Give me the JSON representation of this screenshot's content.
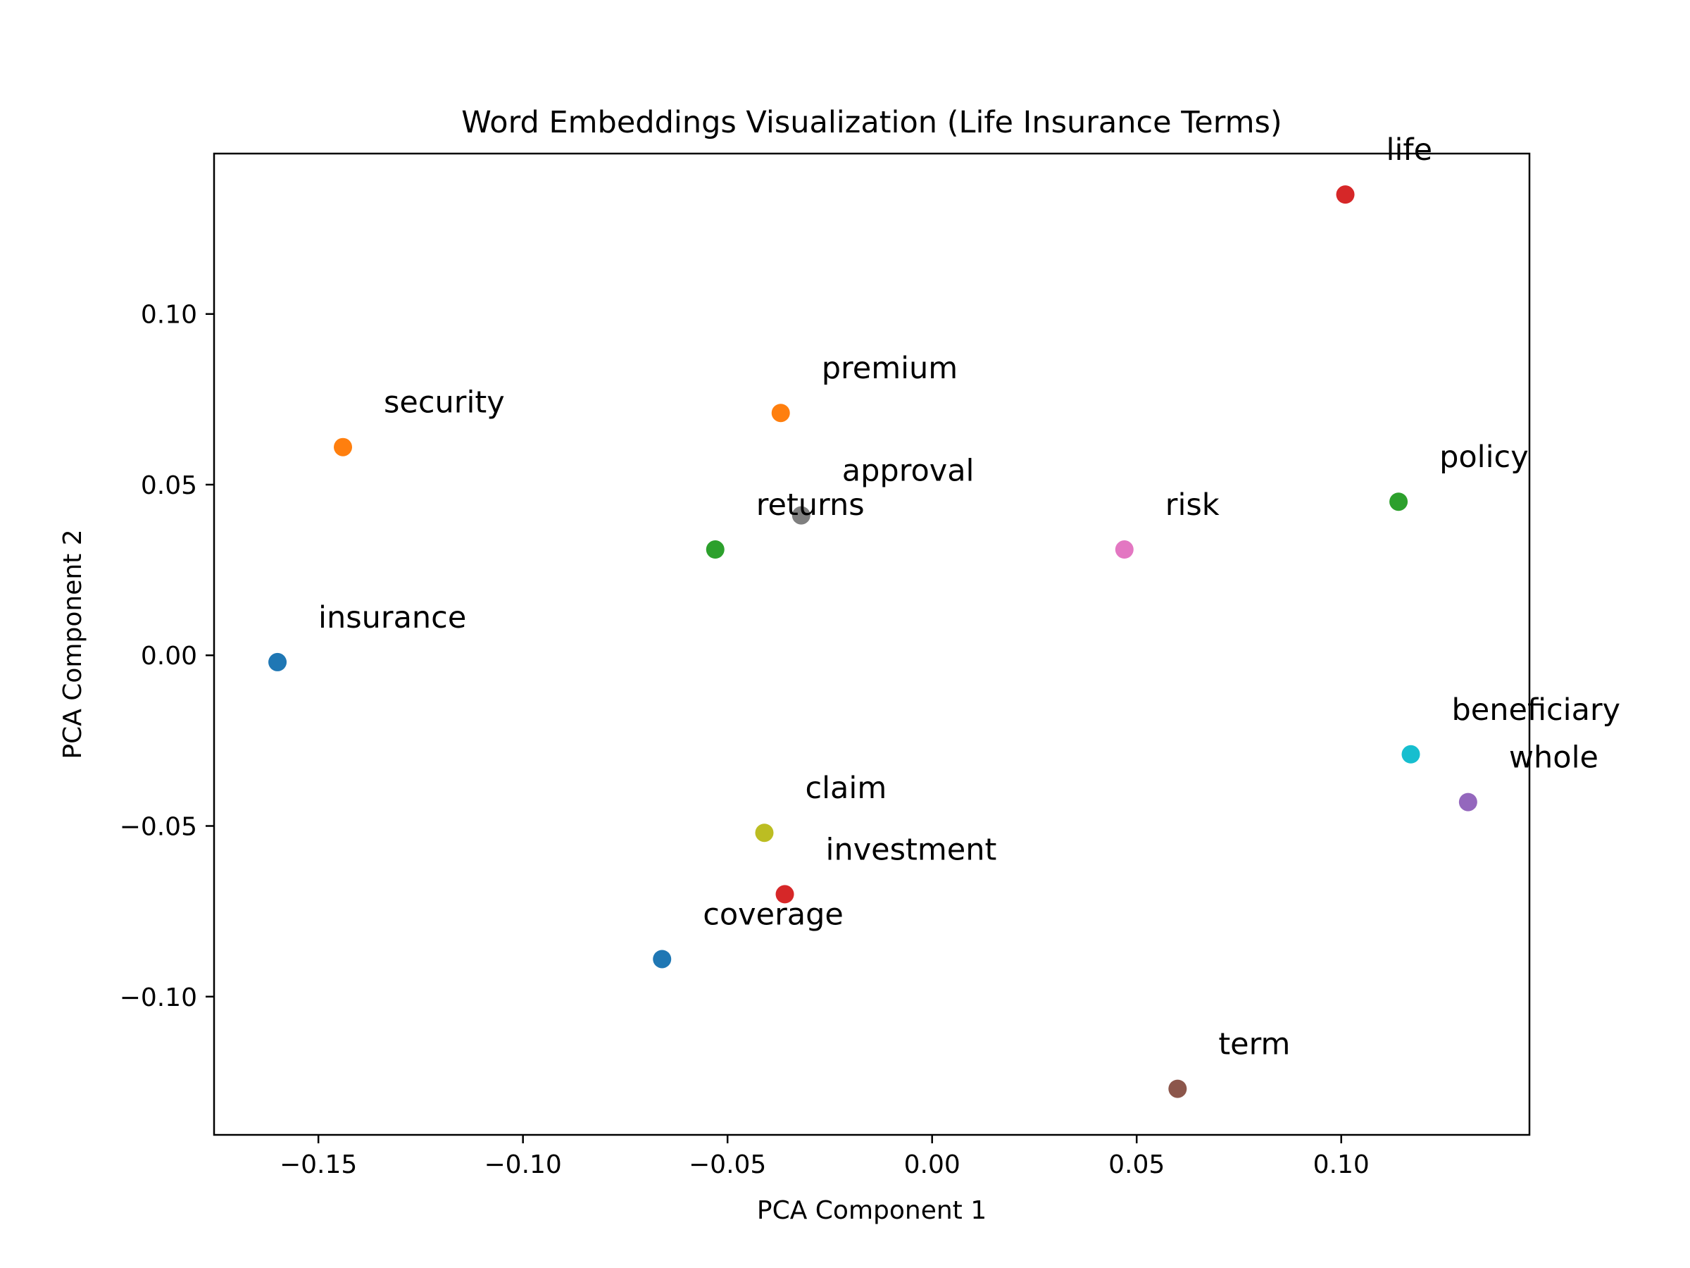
{
  "chart_data": {
    "type": "scatter",
    "title": "Word Embeddings Visualization (Life Insurance Terms)",
    "xlabel": "PCA Component 1",
    "ylabel": "PCA Component 2",
    "xlim": [
      -0.1755,
      0.146
    ],
    "ylim": [
      -0.1405,
      0.147
    ],
    "xticks": [
      -0.15,
      -0.1,
      -0.05,
      0.0,
      0.05,
      0.1
    ],
    "xtick_labels": [
      "−0.15",
      "−0.10",
      "−0.05",
      "0.00",
      "0.05",
      "0.10"
    ],
    "yticks": [
      -0.1,
      -0.05,
      0.0,
      0.05,
      0.1
    ],
    "ytick_labels": [
      "−0.10",
      "−0.05",
      "0.00",
      "0.05",
      "0.10"
    ],
    "grid": false,
    "legend": "none",
    "points": [
      {
        "label": "insurance",
        "x": -0.16,
        "y": -0.002,
        "color": "#1f77b4"
      },
      {
        "label": "security",
        "x": -0.144,
        "y": 0.061,
        "color": "#ff7f0e"
      },
      {
        "label": "returns",
        "x": -0.053,
        "y": 0.031,
        "color": "#2ca02c"
      },
      {
        "label": "premium",
        "x": -0.037,
        "y": 0.071,
        "color": "#ff7f0e"
      },
      {
        "label": "approval",
        "x": -0.032,
        "y": 0.041,
        "color": "#7f7f7f"
      },
      {
        "label": "risk",
        "x": 0.047,
        "y": 0.031,
        "color": "#e377c2"
      },
      {
        "label": "life",
        "x": 0.101,
        "y": 0.135,
        "color": "#d62728"
      },
      {
        "label": "policy",
        "x": 0.114,
        "y": 0.045,
        "color": "#2ca02c"
      },
      {
        "label": "beneficiary",
        "x": 0.117,
        "y": -0.029,
        "color": "#17becf"
      },
      {
        "label": "whole",
        "x": 0.131,
        "y": -0.043,
        "color": "#9467bd"
      },
      {
        "label": "claim",
        "x": -0.041,
        "y": -0.052,
        "color": "#bcbd22"
      },
      {
        "label": "investment",
        "x": -0.036,
        "y": -0.07,
        "color": "#d62728"
      },
      {
        "label": "coverage",
        "x": -0.066,
        "y": -0.089,
        "color": "#1f77b4"
      },
      {
        "label": "term",
        "x": 0.06,
        "y": -0.127,
        "color": "#8c564b"
      }
    ]
  }
}
